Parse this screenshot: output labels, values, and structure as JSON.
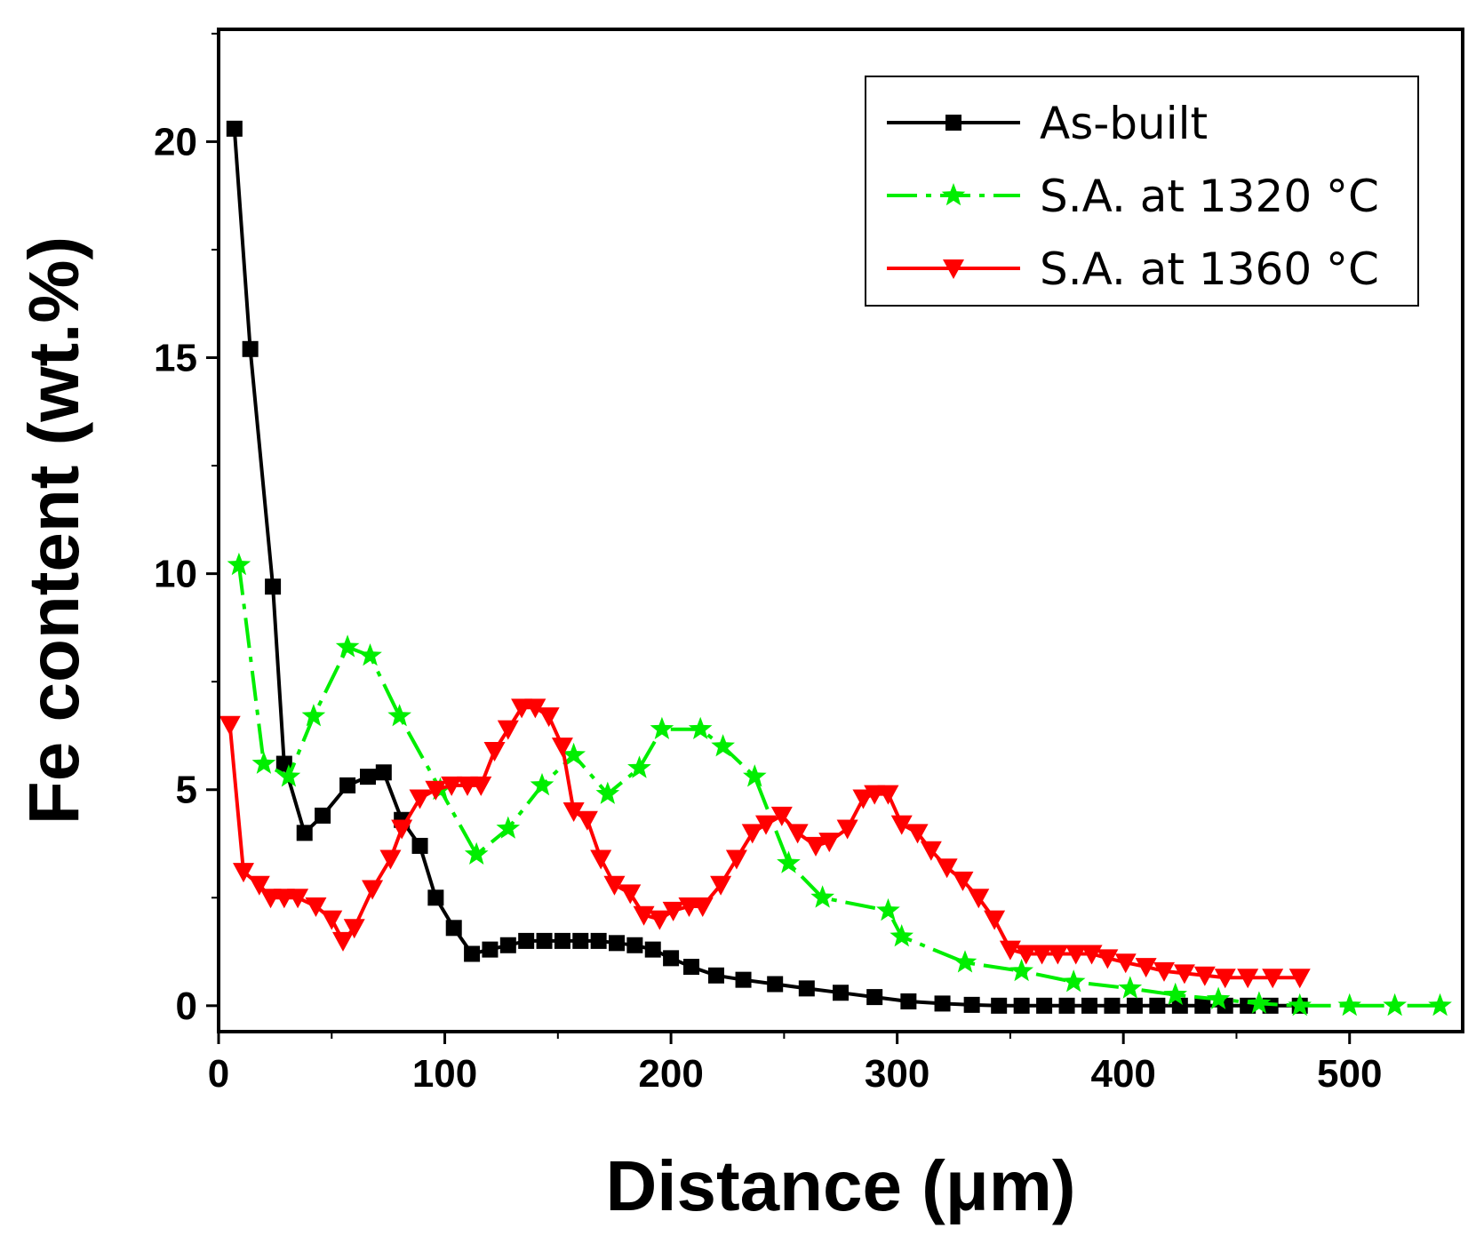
{
  "chart_data": {
    "type": "line",
    "title": "",
    "xlabel": "Distance (μm)",
    "ylabel": "Fe content (wt.%)",
    "xlim": [
      0,
      550
    ],
    "ylim": [
      -0.6,
      22.6
    ],
    "xticks": [
      0,
      100,
      200,
      300,
      400,
      500
    ],
    "yticks": [
      0,
      5,
      10,
      15,
      20
    ],
    "xtick_labels": [
      "0",
      "100",
      "200",
      "300",
      "400",
      "500"
    ],
    "ytick_labels": [
      "0",
      "5",
      "10",
      "15",
      "20"
    ],
    "legend_position": "top-right",
    "series": [
      {
        "name": "As-built",
        "color": "#000000",
        "marker": "square",
        "dash": "solid",
        "x": [
          7,
          14,
          24,
          29,
          38,
          46,
          57,
          66,
          73,
          81,
          89,
          96,
          104,
          112,
          120,
          128,
          136,
          144,
          152,
          160,
          168,
          176,
          184,
          192,
          200,
          209,
          220,
          232,
          246,
          260,
          275,
          290,
          305,
          320,
          333,
          345,
          355,
          365,
          375,
          385,
          395,
          405,
          415,
          425,
          435,
          445,
          455,
          465,
          478
        ],
        "y": [
          20.3,
          15.2,
          9.7,
          5.6,
          4.0,
          4.4,
          5.1,
          5.3,
          5.4,
          4.3,
          3.7,
          2.5,
          1.8,
          1.2,
          1.3,
          1.4,
          1.5,
          1.5,
          1.5,
          1.5,
          1.5,
          1.45,
          1.4,
          1.3,
          1.1,
          0.9,
          0.7,
          0.6,
          0.5,
          0.4,
          0.3,
          0.2,
          0.1,
          0.05,
          0.02,
          0.0,
          0.0,
          0.0,
          0.0,
          0.0,
          0.0,
          0.0,
          0.0,
          0.0,
          0.0,
          0.0,
          0.0,
          0.0,
          0.0
        ]
      },
      {
        "name": "S.A. at 1320 °C",
        "color": "#00ee00",
        "marker": "star",
        "dash": "dashdot",
        "x": [
          9,
          20,
          31,
          42,
          57,
          67,
          80,
          98,
          114,
          128,
          143,
          157,
          172,
          186,
          196,
          213,
          223,
          237,
          252,
          267,
          296,
          302,
          330,
          355,
          378,
          403,
          423,
          442,
          460,
          478,
          500,
          520,
          540
        ],
        "y": [
          10.2,
          5.6,
          5.3,
          6.7,
          8.3,
          8.1,
          6.7,
          5.0,
          3.5,
          4.1,
          5.1,
          5.8,
          4.9,
          5.5,
          6.4,
          6.4,
          6.0,
          5.3,
          3.3,
          2.5,
          2.2,
          1.6,
          1.0,
          0.8,
          0.55,
          0.4,
          0.25,
          0.15,
          0.05,
          0.0,
          0.0,
          0.0,
          0.0
        ]
      },
      {
        "name": "S.A. at 1360 °C",
        "color": "#ff0000",
        "marker": "triangle-down",
        "dash": "solid",
        "x": [
          5,
          11,
          18,
          23,
          29,
          35,
          43,
          50,
          55,
          60,
          68,
          76,
          81,
          89,
          96,
          103,
          110,
          116,
          122,
          128,
          134,
          140,
          146,
          152,
          157,
          163,
          169,
          175,
          182,
          188,
          195,
          201,
          208,
          214,
          222,
          229,
          236,
          242,
          249,
          256,
          264,
          270,
          278,
          285,
          290,
          296,
          302,
          309,
          315,
          322,
          329,
          336,
          343,
          350,
          357,
          364,
          371,
          379,
          386,
          393,
          401,
          410,
          418,
          427,
          436,
          445,
          455,
          466,
          478
        ],
        "y": [
          6.5,
          3.1,
          2.8,
          2.5,
          2.5,
          2.5,
          2.3,
          2.0,
          1.5,
          1.8,
          2.7,
          3.4,
          4.1,
          4.8,
          5.0,
          5.1,
          5.1,
          5.1,
          5.9,
          6.4,
          6.9,
          6.9,
          6.7,
          6.0,
          4.5,
          4.3,
          3.4,
          2.8,
          2.6,
          2.1,
          2.0,
          2.2,
          2.3,
          2.3,
          2.8,
          3.4,
          4.0,
          4.2,
          4.4,
          4.0,
          3.7,
          3.8,
          4.1,
          4.8,
          4.9,
          4.9,
          4.2,
          4.0,
          3.6,
          3.2,
          2.9,
          2.5,
          2.0,
          1.3,
          1.2,
          1.2,
          1.2,
          1.2,
          1.2,
          1.1,
          1.0,
          0.9,
          0.8,
          0.75,
          0.7,
          0.65,
          0.65,
          0.65,
          0.65
        ]
      }
    ]
  }
}
